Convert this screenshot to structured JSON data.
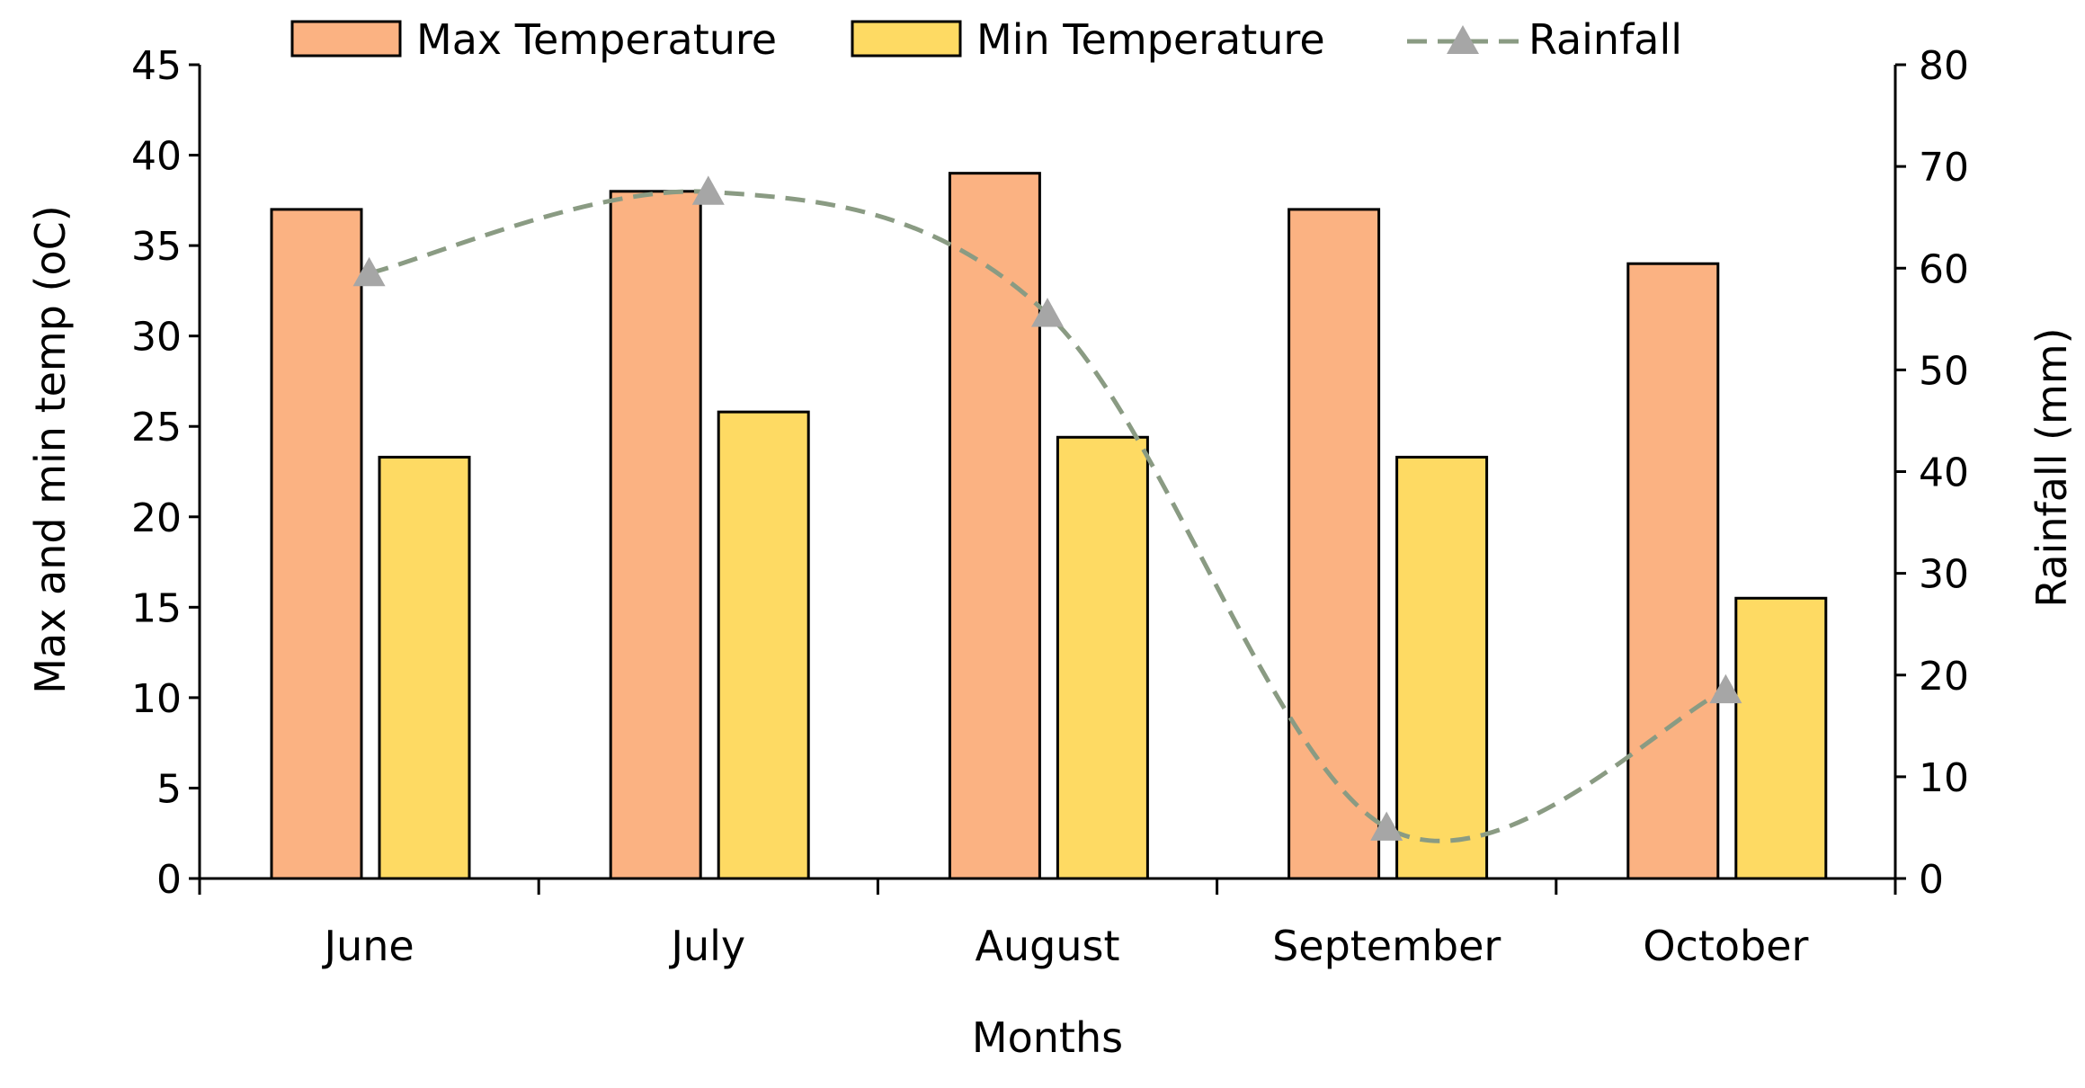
{
  "chart_data": {
    "type": "bar",
    "categories": [
      "June",
      "July",
      "August",
      "September",
      "October"
    ],
    "series": [
      {
        "name": "Max Temperature",
        "kind": "bar",
        "axis": "left",
        "color": "#FBB282",
        "values": [
          37,
          38,
          39,
          37,
          34
        ]
      },
      {
        "name": "Min Temperature",
        "kind": "bar",
        "axis": "left",
        "color": "#FEDA63",
        "values": [
          23.3,
          25.8,
          24.4,
          23.3,
          15.5
        ]
      },
      {
        "name": "Rainfall",
        "kind": "line",
        "axis": "right",
        "color": "#8A9B83",
        "marker_color": "#A6A6A6",
        "values": [
          59.5,
          67.5,
          55.5,
          5,
          18.5
        ]
      }
    ],
    "xlabel": "Months",
    "ylabel": "Max and min temp (oC)",
    "y2label": "Rainfall (mm)",
    "ylim": [
      0,
      45
    ],
    "y2lim": [
      0,
      80
    ],
    "yticks": [
      0,
      5,
      10,
      15,
      20,
      25,
      30,
      35,
      40,
      45
    ],
    "y2ticks": [
      0,
      10,
      20,
      30,
      40,
      50,
      60,
      70,
      80
    ],
    "legend_position": "top"
  }
}
